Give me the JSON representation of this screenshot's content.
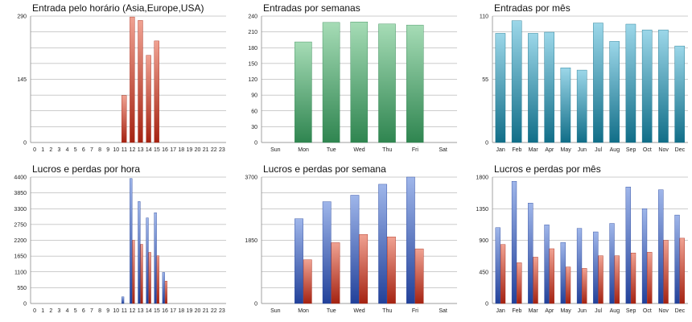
{
  "colors": {
    "grid": "#9a9a9a",
    "axis": "#8c8c8c",
    "red_light": "#f0a292",
    "red_dark": "#a52312",
    "green_light": "#a6dcb6",
    "green_dark": "#2f8550",
    "teal_light": "#9cd7e9",
    "teal_dark": "#116e88",
    "blue_light": "#9fb6ea",
    "blue_dark": "#22419a"
  },
  "chart_data": [
    {
      "id": "hourly-entries",
      "type": "bar",
      "title": "Entrada pelo horário (Asia,Europe,USA)",
      "categories": [
        "0",
        "1",
        "2",
        "3",
        "4",
        "5",
        "6",
        "7",
        "8",
        "9",
        "10",
        "11",
        "12",
        "13",
        "14",
        "15",
        "16",
        "17",
        "18",
        "19",
        "20",
        "21",
        "22",
        "23"
      ],
      "series": [
        {
          "values": [
            0,
            0,
            0,
            0,
            0,
            0,
            0,
            0,
            0,
            0,
            0,
            108,
            288,
            280,
            200,
            233,
            0,
            0,
            0,
            0,
            0,
            0,
            0,
            0
          ],
          "color": "red"
        }
      ],
      "yticks": [
        "0",
        "145",
        "290"
      ],
      "ylim": [
        0,
        290
      ],
      "grid": true
    },
    {
      "id": "weekly-entries",
      "type": "bar",
      "title": "Entradas por semanas",
      "categories": [
        "Sun",
        "Mon",
        "Tue",
        "Wed",
        "Thu",
        "Fri",
        "Sat"
      ],
      "series": [
        {
          "values": [
            0,
            191,
            228,
            229,
            225,
            223,
            0
          ],
          "color": "green"
        }
      ],
      "yticks": [
        "0",
        "30",
        "60",
        "90",
        "120",
        "150",
        "180",
        "210",
        "240"
      ],
      "ylim": [
        0,
        240
      ],
      "grid": true
    },
    {
      "id": "monthly-entries",
      "type": "bar",
      "title": "Entradas por mês",
      "categories": [
        "Jan",
        "Feb",
        "Mar",
        "Apr",
        "May",
        "Jun",
        "Jul",
        "Aug",
        "Sep",
        "Oct",
        "Nov",
        "Dec"
      ],
      "series": [
        {
          "values": [
            95,
            106,
            95,
            96,
            65,
            63,
            104,
            88,
            103,
            98,
            98,
            84
          ],
          "color": "teal"
        }
      ],
      "yticks": [
        "0",
        "55",
        "110"
      ],
      "ylim": [
        0,
        110
      ],
      "grid": true
    },
    {
      "id": "hourly-profit-loss",
      "type": "bar",
      "title": "Lucros e perdas por hora",
      "categories": [
        "0",
        "1",
        "2",
        "3",
        "4",
        "5",
        "6",
        "7",
        "8",
        "9",
        "10",
        "11",
        "12",
        "13",
        "14",
        "15",
        "16",
        "17",
        "18",
        "19",
        "20",
        "21",
        "22",
        "23"
      ],
      "series": [
        {
          "values": [
            0,
            0,
            0,
            0,
            0,
            0,
            0,
            0,
            0,
            0,
            0,
            230,
            4350,
            3550,
            2980,
            3160,
            1080,
            0,
            0,
            0,
            0,
            0,
            0,
            0
          ],
          "color": "blue"
        },
        {
          "values": [
            0,
            0,
            0,
            0,
            0,
            0,
            0,
            0,
            0,
            0,
            0,
            0,
            2200,
            2060,
            1780,
            1660,
            780,
            0,
            0,
            0,
            0,
            0,
            0,
            0
          ],
          "color": "red"
        }
      ],
      "yticks": [
        "0",
        "550",
        "1100",
        "1650",
        "2200",
        "2750",
        "3300",
        "3850",
        "4400"
      ],
      "ylim": [
        0,
        4400
      ],
      "grid": true
    },
    {
      "id": "weekly-profit-loss",
      "type": "bar",
      "title": "Lucros e perdas por semana",
      "categories": [
        "Sun",
        "Mon",
        "Tue",
        "Wed",
        "Thu",
        "Fri",
        "Sat"
      ],
      "series": [
        {
          "values": [
            0,
            2480,
            2980,
            3170,
            3490,
            3700,
            0
          ],
          "color": "blue"
        },
        {
          "values": [
            0,
            1280,
            1780,
            2020,
            1950,
            1600,
            0
          ],
          "color": "red"
        }
      ],
      "yticks": [
        "0",
        "1850",
        "3700"
      ],
      "ylim": [
        0,
        3700
      ],
      "grid": true
    },
    {
      "id": "monthly-profit-loss",
      "type": "bar",
      "title": "Lucros e perdas por mês",
      "categories": [
        "Jan",
        "Feb",
        "Mar",
        "Apr",
        "May",
        "Jun",
        "Jul",
        "Aug",
        "Sep",
        "Oct",
        "Nov",
        "Dec"
      ],
      "series": [
        {
          "values": [
            1080,
            1740,
            1430,
            1120,
            870,
            1070,
            1020,
            1140,
            1660,
            1350,
            1620,
            1260
          ],
          "color": "blue"
        },
        {
          "values": [
            840,
            580,
            660,
            780,
            520,
            500,
            680,
            680,
            720,
            730,
            900,
            930
          ],
          "color": "red"
        }
      ],
      "yticks": [
        "0",
        "450",
        "900",
        "1350",
        "1800"
      ],
      "ylim": [
        0,
        1800
      ],
      "grid": true
    }
  ]
}
